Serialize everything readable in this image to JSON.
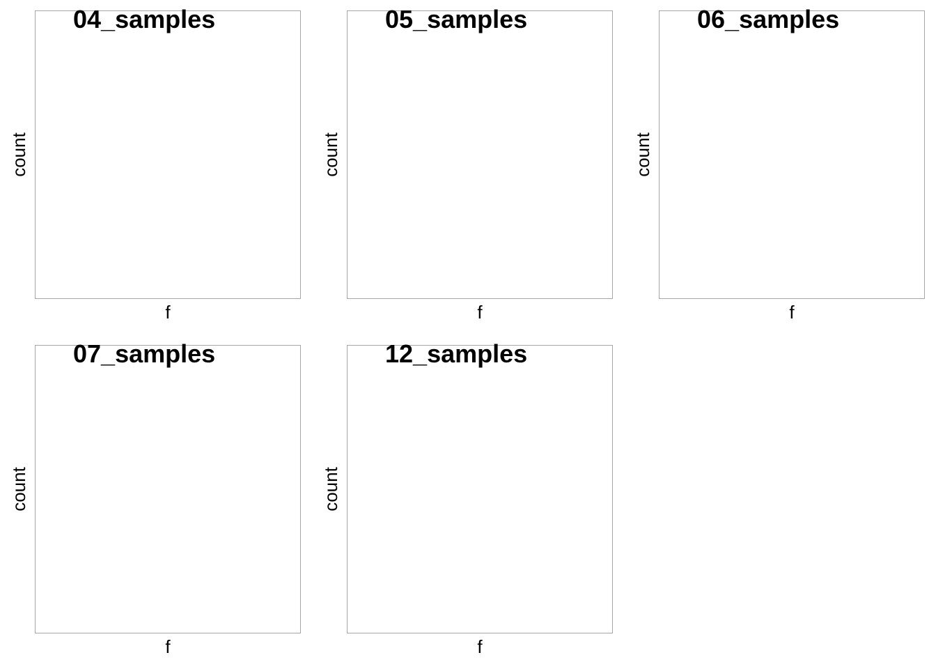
{
  "chart_data": [
    {
      "type": "bar",
      "title": "04_samples",
      "xlabel": "f",
      "ylabel": "count",
      "categories": [],
      "values": [],
      "grid": false,
      "legend": "none"
    },
    {
      "type": "bar",
      "title": "05_samples",
      "xlabel": "f",
      "ylabel": "count",
      "categories": [],
      "values": [],
      "grid": false,
      "legend": "none"
    },
    {
      "type": "bar",
      "title": "06_samples",
      "xlabel": "f",
      "ylabel": "count",
      "categories": [],
      "values": [],
      "grid": false,
      "legend": "none"
    },
    {
      "type": "bar",
      "title": "07_samples",
      "xlabel": "f",
      "ylabel": "count",
      "categories": [],
      "values": [],
      "grid": false,
      "legend": "none"
    },
    {
      "type": "bar",
      "title": "12_samples",
      "xlabel": "f",
      "ylabel": "count",
      "categories": [],
      "values": [],
      "grid": false,
      "legend": "none"
    }
  ]
}
